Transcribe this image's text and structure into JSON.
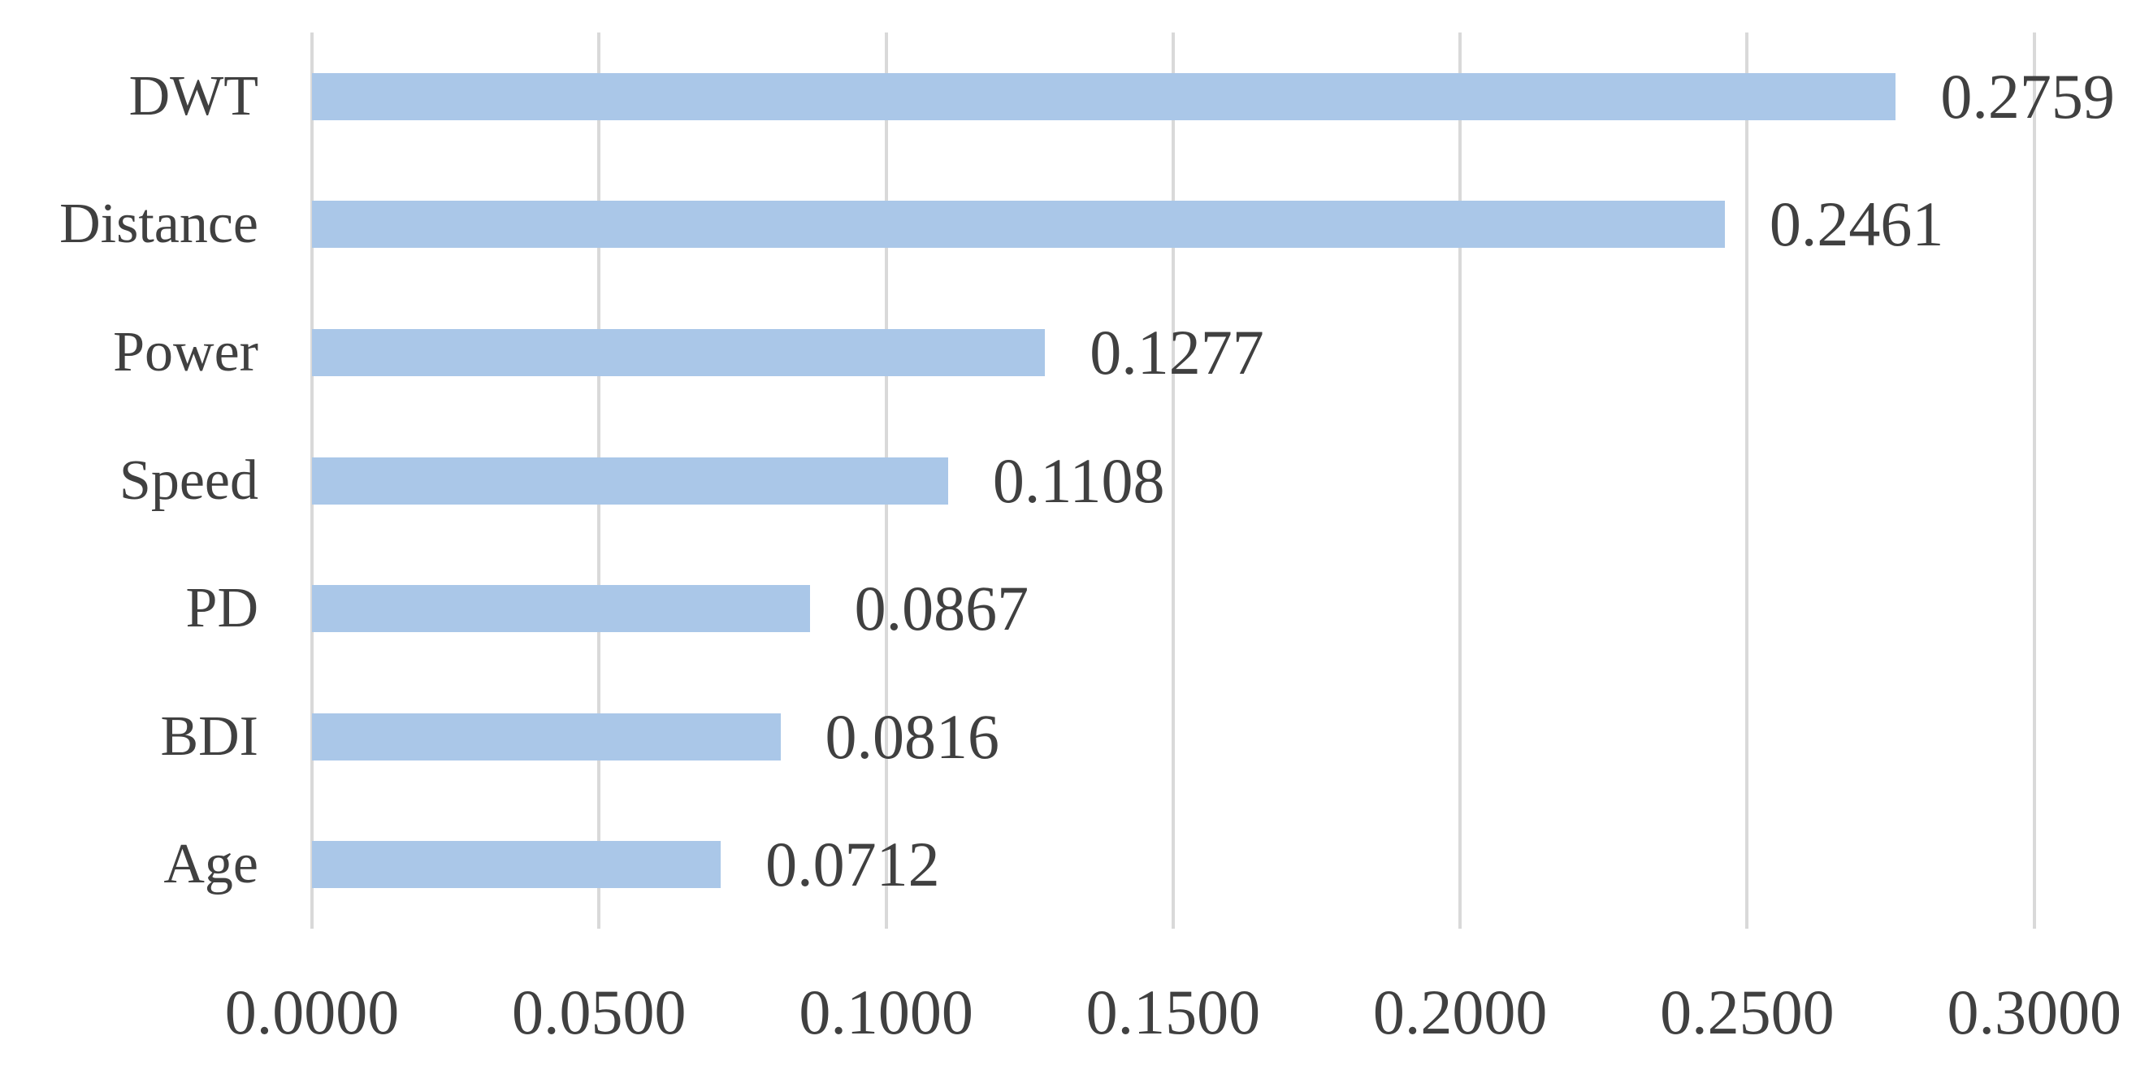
{
  "chart_data": {
    "type": "bar",
    "orientation": "horizontal",
    "title": "",
    "xlabel": "",
    "ylabel": "",
    "categories": [
      "DWT",
      "Distance",
      "Power",
      "Speed",
      "PD",
      "BDI",
      "Age"
    ],
    "values": [
      0.2759,
      0.2461,
      0.1277,
      0.1108,
      0.0867,
      0.0816,
      0.0712
    ],
    "value_labels": [
      "0.2759",
      "0.2461",
      "0.1277",
      "0.1108",
      "0.0867",
      "0.0816",
      "0.0712"
    ],
    "x_ticks": [
      0.0,
      0.05,
      0.1,
      0.15,
      0.2,
      0.25,
      0.3
    ],
    "x_tick_labels": [
      "0.0000",
      "0.0500",
      "0.1000",
      "0.1500",
      "0.2000",
      "0.2500",
      "0.3000"
    ],
    "xlim": [
      0.0,
      0.32
    ],
    "grid": true,
    "legend": false,
    "colors": {
      "bar": "#aac7e8",
      "gridline": "#d9d9d9",
      "text": "#404040",
      "background": "#ffffff"
    }
  }
}
